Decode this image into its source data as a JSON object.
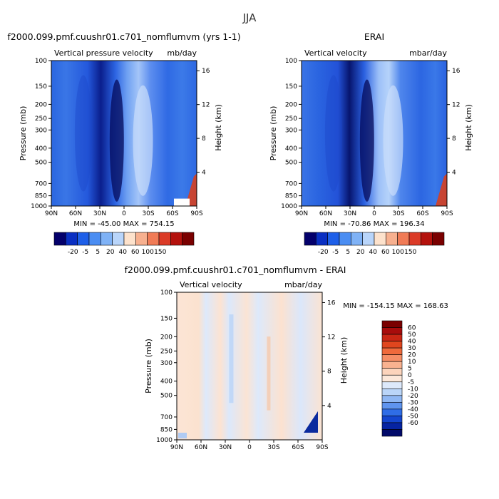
{
  "figure": {
    "title": "JJA"
  },
  "chart_data": [
    {
      "type": "heatmap",
      "title": "f2000.099.pmf.cuushr01.c701_nomflumvm (yrs 1-1)",
      "left_title": "Vertical pressure velocity",
      "right_title": "mb/day",
      "ylabel": "Pressure (mb)",
      "ylabel_right": "Height (km)",
      "x_ticks": [
        "90N",
        "60N",
        "30N",
        "0",
        "30S",
        "60S",
        "90S"
      ],
      "y_ticks": [
        "100",
        "150",
        "200",
        "250",
        "300",
        "400",
        "500",
        "700",
        "850",
        "1000"
      ],
      "y_right_ticks": [
        "16",
        "12",
        "8",
        "4"
      ],
      "ylim": [
        1000,
        100
      ],
      "y_scale": "log",
      "min": -45.0,
      "max": 754.15,
      "stats_text": "MIN = -45.00   MAX = 754.15",
      "colorbar_labels": [
        "-20",
        "-5",
        "5",
        "20",
        "40",
        "60",
        "100",
        "150"
      ],
      "colorbar_colors": [
        "#04006b",
        "#0a2fc2",
        "#1e5fe8",
        "#4a8df2",
        "#7fb2f6",
        "#b9d5fa",
        "#fde2cc",
        "#f7b08f",
        "#f07b56",
        "#db3b27",
        "#b4120d",
        "#7a0000"
      ]
    },
    {
      "type": "heatmap",
      "title": "ERAI",
      "left_title": "Vertical velocity",
      "right_title": "mbar/day",
      "ylabel": "Pressure (mb)",
      "ylabel_right": "Height (km)",
      "x_ticks": [
        "90N",
        "60N",
        "30N",
        "0",
        "30S",
        "60S",
        "90S"
      ],
      "y_ticks": [
        "100",
        "150",
        "200",
        "250",
        "300",
        "400",
        "500",
        "700",
        "850",
        "1000"
      ],
      "y_right_ticks": [
        "16",
        "12",
        "8",
        "4"
      ],
      "ylim": [
        1000,
        100
      ],
      "y_scale": "log",
      "min": -70.86,
      "max": 196.34,
      "stats_text": "MIN = -70.86   MAX = 196.34",
      "colorbar_labels": [
        "-20",
        "-5",
        "5",
        "20",
        "40",
        "60",
        "100",
        "150"
      ],
      "colorbar_colors": [
        "#04006b",
        "#0a2fc2",
        "#1e5fe8",
        "#4a8df2",
        "#7fb2f6",
        "#b9d5fa",
        "#fde2cc",
        "#f7b08f",
        "#f07b56",
        "#db3b27",
        "#b4120d",
        "#7a0000"
      ]
    },
    {
      "type": "heatmap",
      "title": "f2000.099.pmf.cuushr01.c701_nomflumvm - ERAI",
      "left_title": "Vertical velocity",
      "right_title": "mbar/day",
      "ylabel": "Pressure (mb)",
      "ylabel_right": "Height (km)",
      "x_ticks": [
        "90N",
        "60N",
        "30N",
        "0",
        "30S",
        "60S",
        "90S"
      ],
      "y_ticks": [
        "100",
        "150",
        "200",
        "250",
        "300",
        "400",
        "500",
        "700",
        "850",
        "1000"
      ],
      "y_right_ticks": [
        "16",
        "12",
        "8",
        "4"
      ],
      "ylim": [
        1000,
        100
      ],
      "y_scale": "log",
      "min": -154.15,
      "max": 168.63,
      "stats_text": "MIN = -154.15   MAX = 168.63",
      "colorbar_labels": [
        "60",
        "50",
        "40",
        "30",
        "20",
        "10",
        "5",
        "0",
        "-5",
        "-10",
        "-20",
        "-30",
        "-40",
        "-50",
        "-60"
      ],
      "colorbar_colors": [
        "#7a0000",
        "#a80c0c",
        "#c92614",
        "#e0461e",
        "#ef6a3c",
        "#f58e66",
        "#f9b290",
        "#fcd4bc",
        "#fce8da",
        "#dde9fb",
        "#bad5f8",
        "#8fb7f3",
        "#5f94ee",
        "#2f6de6",
        "#1446cf",
        "#0624a2",
        "#020a6a"
      ]
    }
  ]
}
